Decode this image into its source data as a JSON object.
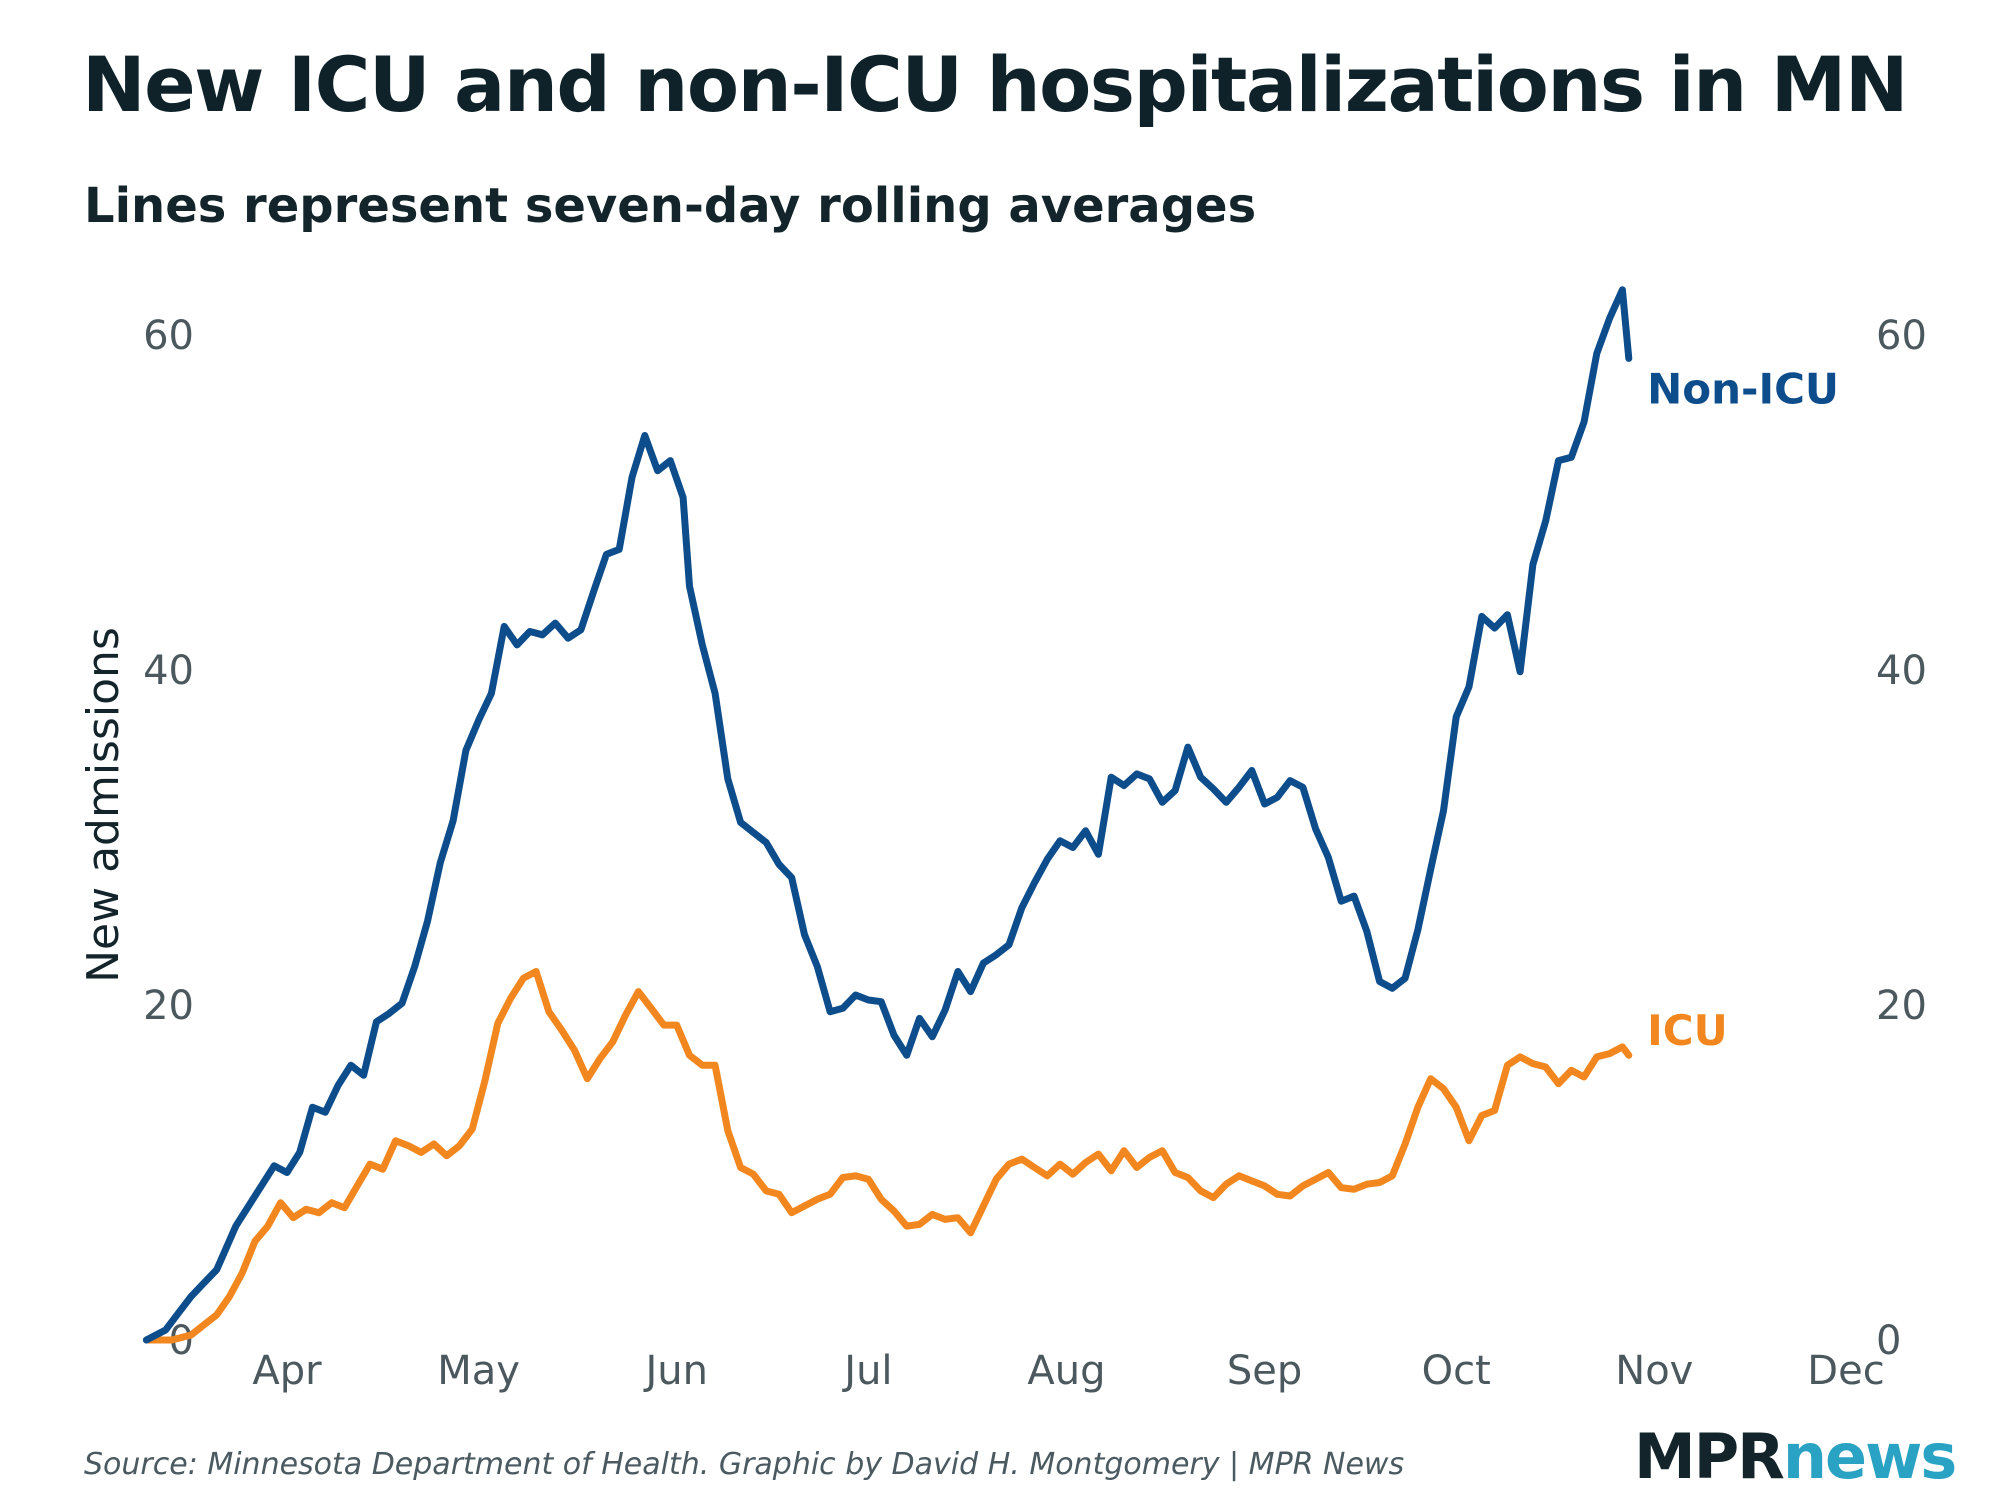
{
  "title": "New ICU and non-ICU hospitalizations in MN",
  "subtitle": "Lines represent seven-day rolling averages",
  "source": "Source: Minnesota Department of Health. Graphic by David H. Montgomery | MPR News",
  "logo": {
    "part1": "MPR",
    "part2": "news"
  },
  "colors": {
    "non_icu": "#0e4d8c",
    "icu": "#f2871f",
    "text": "#13252b"
  },
  "chart_data": {
    "type": "line",
    "title": "New ICU and non-ICU hospitalizations in MN",
    "ylabel": "New admissions",
    "xlabel": "",
    "ylim": [
      0,
      64
    ],
    "yticks": [
      0,
      20,
      40,
      60
    ],
    "ytick_labels": [
      "0",
      "20",
      "40",
      "60"
    ],
    "xlim": [
      "2020-03-09",
      "2020-12-01"
    ],
    "xticks": [
      {
        "date": "2020-04-01",
        "label": "Apr"
      },
      {
        "date": "2020-05-01",
        "label": "May"
      },
      {
        "date": "2020-06-01",
        "label": "Jun"
      },
      {
        "date": "2020-07-01",
        "label": "Jul"
      },
      {
        "date": "2020-08-01",
        "label": "Aug"
      },
      {
        "date": "2020-09-01",
        "label": "Sep"
      },
      {
        "date": "2020-10-01",
        "label": "Oct"
      },
      {
        "date": "2020-11-01",
        "label": "Nov"
      },
      {
        "date": "2020-12-01",
        "label": "Dec"
      }
    ],
    "series": [
      {
        "name": "Non-ICU",
        "color": "#0e4d8c",
        "points": [
          [
            "2020-03-10",
            0
          ],
          [
            "2020-03-13",
            0.6
          ],
          [
            "2020-03-15",
            1.6
          ],
          [
            "2020-03-17",
            2.6
          ],
          [
            "2020-03-19",
            3.4
          ],
          [
            "2020-03-21",
            4.2
          ],
          [
            "2020-03-24",
            6.8
          ],
          [
            "2020-03-26",
            8.0
          ],
          [
            "2020-03-28",
            9.2
          ],
          [
            "2020-03-30",
            10.4
          ],
          [
            "2020-04-01",
            10.0
          ],
          [
            "2020-04-03",
            11.2
          ],
          [
            "2020-04-05",
            13.9
          ],
          [
            "2020-04-07",
            13.6
          ],
          [
            "2020-04-09",
            15.2
          ],
          [
            "2020-04-11",
            16.4
          ],
          [
            "2020-04-13",
            15.8
          ],
          [
            "2020-04-15",
            19.0
          ],
          [
            "2020-04-17",
            19.5
          ],
          [
            "2020-04-19",
            20.1
          ],
          [
            "2020-04-21",
            22.3
          ],
          [
            "2020-04-23",
            25.0
          ],
          [
            "2020-04-25",
            28.5
          ],
          [
            "2020-04-27",
            31.0
          ],
          [
            "2020-04-29",
            35.2
          ],
          [
            "2020-05-01",
            37.0
          ],
          [
            "2020-05-03",
            38.6
          ],
          [
            "2020-05-05",
            42.6
          ],
          [
            "2020-05-07",
            41.5
          ],
          [
            "2020-05-09",
            42.3
          ],
          [
            "2020-05-11",
            42.1
          ],
          [
            "2020-05-13",
            42.8
          ],
          [
            "2020-05-15",
            41.9
          ],
          [
            "2020-05-17",
            42.4
          ],
          [
            "2020-05-19",
            44.7
          ],
          [
            "2020-05-21",
            46.9
          ],
          [
            "2020-05-23",
            47.2
          ],
          [
            "2020-05-25",
            51.5
          ],
          [
            "2020-05-27",
            54.0
          ],
          [
            "2020-05-29",
            51.9
          ],
          [
            "2020-05-31",
            52.5
          ],
          [
            "2020-06-02",
            50.3
          ],
          [
            "2020-06-03",
            45.0
          ],
          [
            "2020-06-05",
            41.5
          ],
          [
            "2020-06-07",
            38.6
          ],
          [
            "2020-06-09",
            33.5
          ],
          [
            "2020-06-11",
            30.9
          ],
          [
            "2020-06-13",
            30.3
          ],
          [
            "2020-06-15",
            29.7
          ],
          [
            "2020-06-17",
            28.4
          ],
          [
            "2020-06-19",
            27.6
          ],
          [
            "2020-06-21",
            24.2
          ],
          [
            "2020-06-23",
            22.3
          ],
          [
            "2020-06-25",
            19.6
          ],
          [
            "2020-06-27",
            19.8
          ],
          [
            "2020-06-29",
            20.6
          ],
          [
            "2020-07-01",
            20.3
          ],
          [
            "2020-07-03",
            20.2
          ],
          [
            "2020-07-05",
            18.2
          ],
          [
            "2020-07-07",
            17.0
          ],
          [
            "2020-07-09",
            19.2
          ],
          [
            "2020-07-11",
            18.1
          ],
          [
            "2020-07-13",
            19.7
          ],
          [
            "2020-07-15",
            22.0
          ],
          [
            "2020-07-17",
            20.8
          ],
          [
            "2020-07-19",
            22.5
          ],
          [
            "2020-07-21",
            23.0
          ],
          [
            "2020-07-23",
            23.6
          ],
          [
            "2020-07-25",
            25.8
          ],
          [
            "2020-07-27",
            27.3
          ],
          [
            "2020-07-29",
            28.7
          ],
          [
            "2020-07-31",
            29.8
          ],
          [
            "2020-08-02",
            29.4
          ],
          [
            "2020-08-04",
            30.4
          ],
          [
            "2020-08-06",
            29.0
          ],
          [
            "2020-08-08",
            33.6
          ],
          [
            "2020-08-10",
            33.1
          ],
          [
            "2020-08-12",
            33.8
          ],
          [
            "2020-08-14",
            33.5
          ],
          [
            "2020-08-16",
            32.1
          ],
          [
            "2020-08-18",
            32.8
          ],
          [
            "2020-08-20",
            35.4
          ],
          [
            "2020-08-22",
            33.6
          ],
          [
            "2020-08-24",
            32.9
          ],
          [
            "2020-08-26",
            32.1
          ],
          [
            "2020-08-28",
            33.0
          ],
          [
            "2020-08-30",
            34.0
          ],
          [
            "2020-09-01",
            32.0
          ],
          [
            "2020-09-03",
            32.4
          ],
          [
            "2020-09-05",
            33.4
          ],
          [
            "2020-09-07",
            33.0
          ],
          [
            "2020-09-09",
            30.5
          ],
          [
            "2020-09-11",
            28.8
          ],
          [
            "2020-09-13",
            26.2
          ],
          [
            "2020-09-15",
            26.5
          ],
          [
            "2020-09-17",
            24.4
          ],
          [
            "2020-09-19",
            21.4
          ],
          [
            "2020-09-21",
            21.0
          ],
          [
            "2020-09-23",
            21.6
          ],
          [
            "2020-09-25",
            24.5
          ],
          [
            "2020-09-27",
            28.1
          ],
          [
            "2020-09-29",
            31.6
          ],
          [
            "2020-10-01",
            37.2
          ],
          [
            "2020-10-03",
            39.0
          ],
          [
            "2020-10-05",
            43.2
          ],
          [
            "2020-10-07",
            42.5
          ],
          [
            "2020-10-09",
            43.3
          ],
          [
            "2020-10-11",
            39.9
          ],
          [
            "2020-10-13",
            46.3
          ],
          [
            "2020-10-15",
            48.9
          ],
          [
            "2020-10-17",
            52.5
          ],
          [
            "2020-10-19",
            52.7
          ],
          [
            "2020-10-21",
            54.8
          ],
          [
            "2020-10-23",
            58.9
          ],
          [
            "2020-10-25",
            61.0
          ],
          [
            "2020-10-27",
            62.7
          ],
          [
            "2020-10-28",
            58.6
          ]
        ]
      },
      {
        "name": "ICU",
        "color": "#f2871f",
        "points": [
          [
            "2020-03-10",
            0
          ],
          [
            "2020-03-14",
            0
          ],
          [
            "2020-03-17",
            0.3
          ],
          [
            "2020-03-19",
            0.9
          ],
          [
            "2020-03-21",
            1.5
          ],
          [
            "2020-03-23",
            2.6
          ],
          [
            "2020-03-25",
            4.0
          ],
          [
            "2020-03-27",
            5.9
          ],
          [
            "2020-03-29",
            6.8
          ],
          [
            "2020-03-31",
            8.2
          ],
          [
            "2020-04-02",
            7.3
          ],
          [
            "2020-04-04",
            7.8
          ],
          [
            "2020-04-06",
            7.6
          ],
          [
            "2020-04-08",
            8.2
          ],
          [
            "2020-04-10",
            7.9
          ],
          [
            "2020-04-12",
            9.2
          ],
          [
            "2020-04-14",
            10.5
          ],
          [
            "2020-04-16",
            10.2
          ],
          [
            "2020-04-18",
            11.9
          ],
          [
            "2020-04-20",
            11.6
          ],
          [
            "2020-04-22",
            11.2
          ],
          [
            "2020-04-24",
            11.7
          ],
          [
            "2020-04-26",
            11.0
          ],
          [
            "2020-04-28",
            11.6
          ],
          [
            "2020-04-30",
            12.6
          ],
          [
            "2020-05-02",
            15.5
          ],
          [
            "2020-05-04",
            18.9
          ],
          [
            "2020-05-06",
            20.4
          ],
          [
            "2020-05-08",
            21.6
          ],
          [
            "2020-05-10",
            22.0
          ],
          [
            "2020-05-12",
            19.6
          ],
          [
            "2020-05-14",
            18.5
          ],
          [
            "2020-05-16",
            17.3
          ],
          [
            "2020-05-18",
            15.6
          ],
          [
            "2020-05-20",
            16.8
          ],
          [
            "2020-05-22",
            17.8
          ],
          [
            "2020-05-24",
            19.4
          ],
          [
            "2020-05-26",
            20.8
          ],
          [
            "2020-05-28",
            19.8
          ],
          [
            "2020-05-30",
            18.8
          ],
          [
            "2020-06-01",
            18.8
          ],
          [
            "2020-06-03",
            17.0
          ],
          [
            "2020-06-05",
            16.4
          ],
          [
            "2020-06-07",
            16.4
          ],
          [
            "2020-06-09",
            12.5
          ],
          [
            "2020-06-11",
            10.3
          ],
          [
            "2020-06-13",
            9.9
          ],
          [
            "2020-06-15",
            8.9
          ],
          [
            "2020-06-17",
            8.7
          ],
          [
            "2020-06-19",
            7.6
          ],
          [
            "2020-06-21",
            8.0
          ],
          [
            "2020-06-23",
            8.4
          ],
          [
            "2020-06-25",
            8.7
          ],
          [
            "2020-06-27",
            9.7
          ],
          [
            "2020-06-29",
            9.8
          ],
          [
            "2020-07-01",
            9.6
          ],
          [
            "2020-07-03",
            8.4
          ],
          [
            "2020-07-05",
            7.7
          ],
          [
            "2020-07-07",
            6.8
          ],
          [
            "2020-07-09",
            6.9
          ],
          [
            "2020-07-11",
            7.5
          ],
          [
            "2020-07-13",
            7.2
          ],
          [
            "2020-07-15",
            7.3
          ],
          [
            "2020-07-17",
            6.4
          ],
          [
            "2020-07-19",
            8.0
          ],
          [
            "2020-07-21",
            9.6
          ],
          [
            "2020-07-23",
            10.5
          ],
          [
            "2020-07-25",
            10.8
          ],
          [
            "2020-07-27",
            10.3
          ],
          [
            "2020-07-29",
            9.8
          ],
          [
            "2020-07-31",
            10.5
          ],
          [
            "2020-08-02",
            9.9
          ],
          [
            "2020-08-04",
            10.6
          ],
          [
            "2020-08-06",
            11.1
          ],
          [
            "2020-08-08",
            10.1
          ],
          [
            "2020-08-10",
            11.3
          ],
          [
            "2020-08-12",
            10.3
          ],
          [
            "2020-08-14",
            10.9
          ],
          [
            "2020-08-16",
            11.3
          ],
          [
            "2020-08-18",
            10.0
          ],
          [
            "2020-08-20",
            9.7
          ],
          [
            "2020-08-22",
            8.9
          ],
          [
            "2020-08-24",
            8.5
          ],
          [
            "2020-08-26",
            9.3
          ],
          [
            "2020-08-28",
            9.8
          ],
          [
            "2020-08-30",
            9.5
          ],
          [
            "2020-09-01",
            9.2
          ],
          [
            "2020-09-03",
            8.7
          ],
          [
            "2020-09-05",
            8.6
          ],
          [
            "2020-09-07",
            9.2
          ],
          [
            "2020-09-09",
            9.6
          ],
          [
            "2020-09-11",
            10.0
          ],
          [
            "2020-09-13",
            9.1
          ],
          [
            "2020-09-15",
            9.0
          ],
          [
            "2020-09-17",
            9.3
          ],
          [
            "2020-09-19",
            9.4
          ],
          [
            "2020-09-21",
            9.8
          ],
          [
            "2020-09-23",
            11.7
          ],
          [
            "2020-09-25",
            13.9
          ],
          [
            "2020-09-27",
            15.6
          ],
          [
            "2020-09-29",
            15.0
          ],
          [
            "2020-10-01",
            13.9
          ],
          [
            "2020-10-03",
            11.9
          ],
          [
            "2020-10-05",
            13.4
          ],
          [
            "2020-10-07",
            13.7
          ],
          [
            "2020-10-09",
            16.4
          ],
          [
            "2020-10-11",
            16.9
          ],
          [
            "2020-10-13",
            16.5
          ],
          [
            "2020-10-15",
            16.3
          ],
          [
            "2020-10-17",
            15.3
          ],
          [
            "2020-10-19",
            16.1
          ],
          [
            "2020-10-21",
            15.7
          ],
          [
            "2020-10-23",
            16.9
          ],
          [
            "2020-10-25",
            17.1
          ],
          [
            "2020-10-27",
            17.5
          ],
          [
            "2020-10-28",
            17.0
          ]
        ]
      }
    ],
    "labels": [
      {
        "text": "Non-ICU",
        "series": "Non-ICU",
        "date": "2020-10-29",
        "y": 56.8
      },
      {
        "text": "ICU",
        "series": "ICU",
        "date": "2020-10-29",
        "y": 18.5
      }
    ]
  }
}
